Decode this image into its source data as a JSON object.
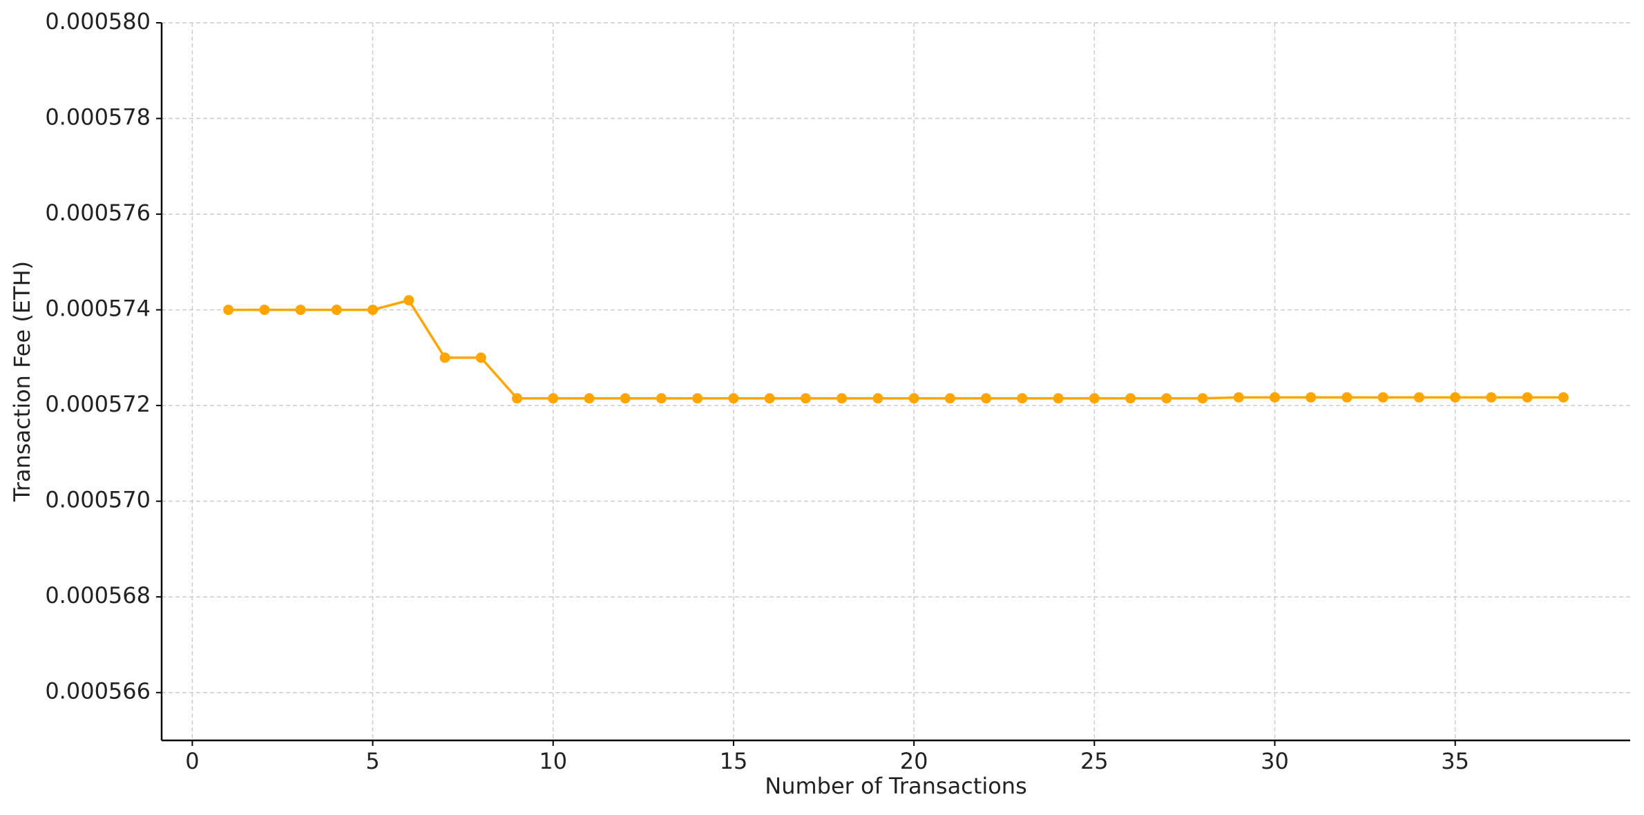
{
  "chart_data": {
    "type": "line",
    "x_label": "Number of Transactions",
    "y_label": "Transaction Fee (ETH)",
    "x": [
      1,
      2,
      3,
      4,
      5,
      6,
      7,
      8,
      9,
      10,
      11,
      12,
      13,
      14,
      15,
      16,
      17,
      18,
      19,
      20,
      21,
      22,
      23,
      24,
      25,
      26,
      27,
      28,
      29,
      30,
      31,
      32,
      33,
      34,
      35,
      36,
      37,
      38
    ],
    "series": [
      {
        "color": "#ffa500",
        "values": [
          0.000574,
          0.000574,
          0.000574,
          0.000574,
          0.000574,
          0.0005742,
          0.000573,
          0.000573,
          0.00057215,
          0.00057215,
          0.00057215,
          0.00057215,
          0.00057215,
          0.00057215,
          0.00057215,
          0.00057215,
          0.00057215,
          0.00057215,
          0.00057215,
          0.00057215,
          0.00057215,
          0.00057215,
          0.00057215,
          0.00057215,
          0.00057215,
          0.00057215,
          0.00057215,
          0.00057215,
          0.00057217,
          0.00057217,
          0.00057217,
          0.00057217,
          0.00057217,
          0.00057217,
          0.00057217,
          0.00057217,
          0.00057217,
          0.00057217
        ]
      }
    ],
    "xlim": [
      -0.85,
      39.85
    ],
    "xticks": [
      0,
      5,
      10,
      15,
      20,
      25,
      30,
      35
    ],
    "ylim": [
      0.000565,
      0.00058
    ],
    "yticks": [
      0.000566,
      0.000568,
      {
        "value": 0.00057,
        "label": "0.000570"
      },
      0.000572,
      0.000574,
      0.000576,
      0.000578,
      {
        "value": 0.00058,
        "label": "0.000580"
      }
    ],
    "grid": true
  }
}
